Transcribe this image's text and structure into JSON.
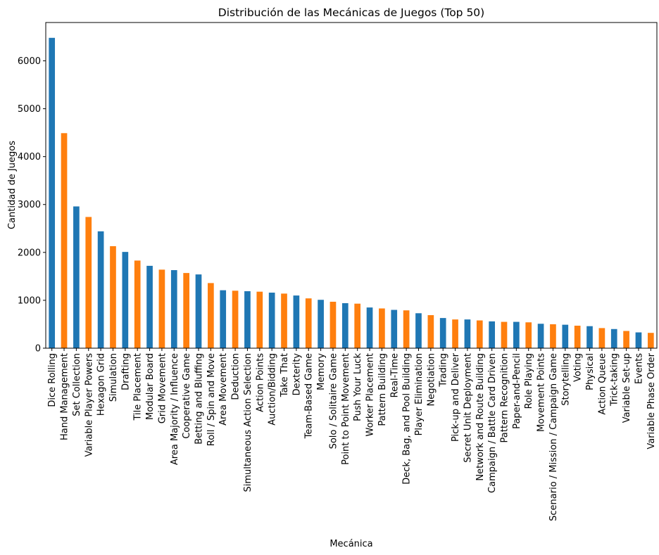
{
  "chart_data": {
    "type": "bar",
    "title": "Distribución de las Mecánicas de Juegos (Top 50)",
    "xlabel": "Mecánica",
    "ylabel": "Cantidad de Juegos",
    "ylim": [
      0,
      6800
    ],
    "yticks": [
      0,
      1000,
      2000,
      3000,
      4000,
      5000,
      6000
    ],
    "grid": false,
    "legend": false,
    "bar_colors": [
      "#1f77b4",
      "#ff7f0e"
    ],
    "categories": [
      "Dice Rolling",
      "Hand Management",
      "Set Collection",
      "Variable Player Powers",
      "Hexagon Grid",
      "Simulation",
      "Drafting",
      "Tile Placement",
      "Modular Board",
      "Grid Movement",
      "Area Majority / Influence",
      "Cooperative Game",
      "Betting and Bluffing",
      "Roll / Spin and Move",
      "Area Movement",
      "Deduction",
      "Simultaneous Action Selection",
      "Action Points",
      "Auction/Bidding",
      "Take That",
      "Dexterity",
      "Team-Based Game",
      "Memory",
      "Solo / Solitaire Game",
      "Point to Point Movement",
      "Push Your Luck",
      "Worker Placement",
      "Pattern Building",
      "Real-Time",
      "Deck, Bag, and Pool Building",
      "Player Elimination",
      "Negotiation",
      "Trading",
      "Pick-up and Deliver",
      "Secret Unit Deployment",
      "Network and Route Building",
      "Campaign / Battle Card Driven",
      "Pattern Recognition",
      "Paper-and-Pencil",
      "Role Playing",
      "Movement Points",
      "Scenario / Mission / Campaign Game",
      "Storytelling",
      "Voting",
      "Physical",
      "Action Queue",
      "Trick-taking",
      "Variable Set-up",
      "Events",
      "Variable Phase Order"
    ],
    "values": [
      6480,
      4490,
      2960,
      2740,
      2440,
      2130,
      2010,
      1830,
      1720,
      1640,
      1630,
      1570,
      1540,
      1360,
      1210,
      1200,
      1190,
      1180,
      1160,
      1140,
      1100,
      1040,
      1010,
      970,
      940,
      930,
      850,
      830,
      800,
      790,
      730,
      690,
      630,
      600,
      600,
      580,
      560,
      550,
      550,
      540,
      510,
      500,
      490,
      470,
      460,
      420,
      400,
      360,
      330,
      320
    ]
  }
}
